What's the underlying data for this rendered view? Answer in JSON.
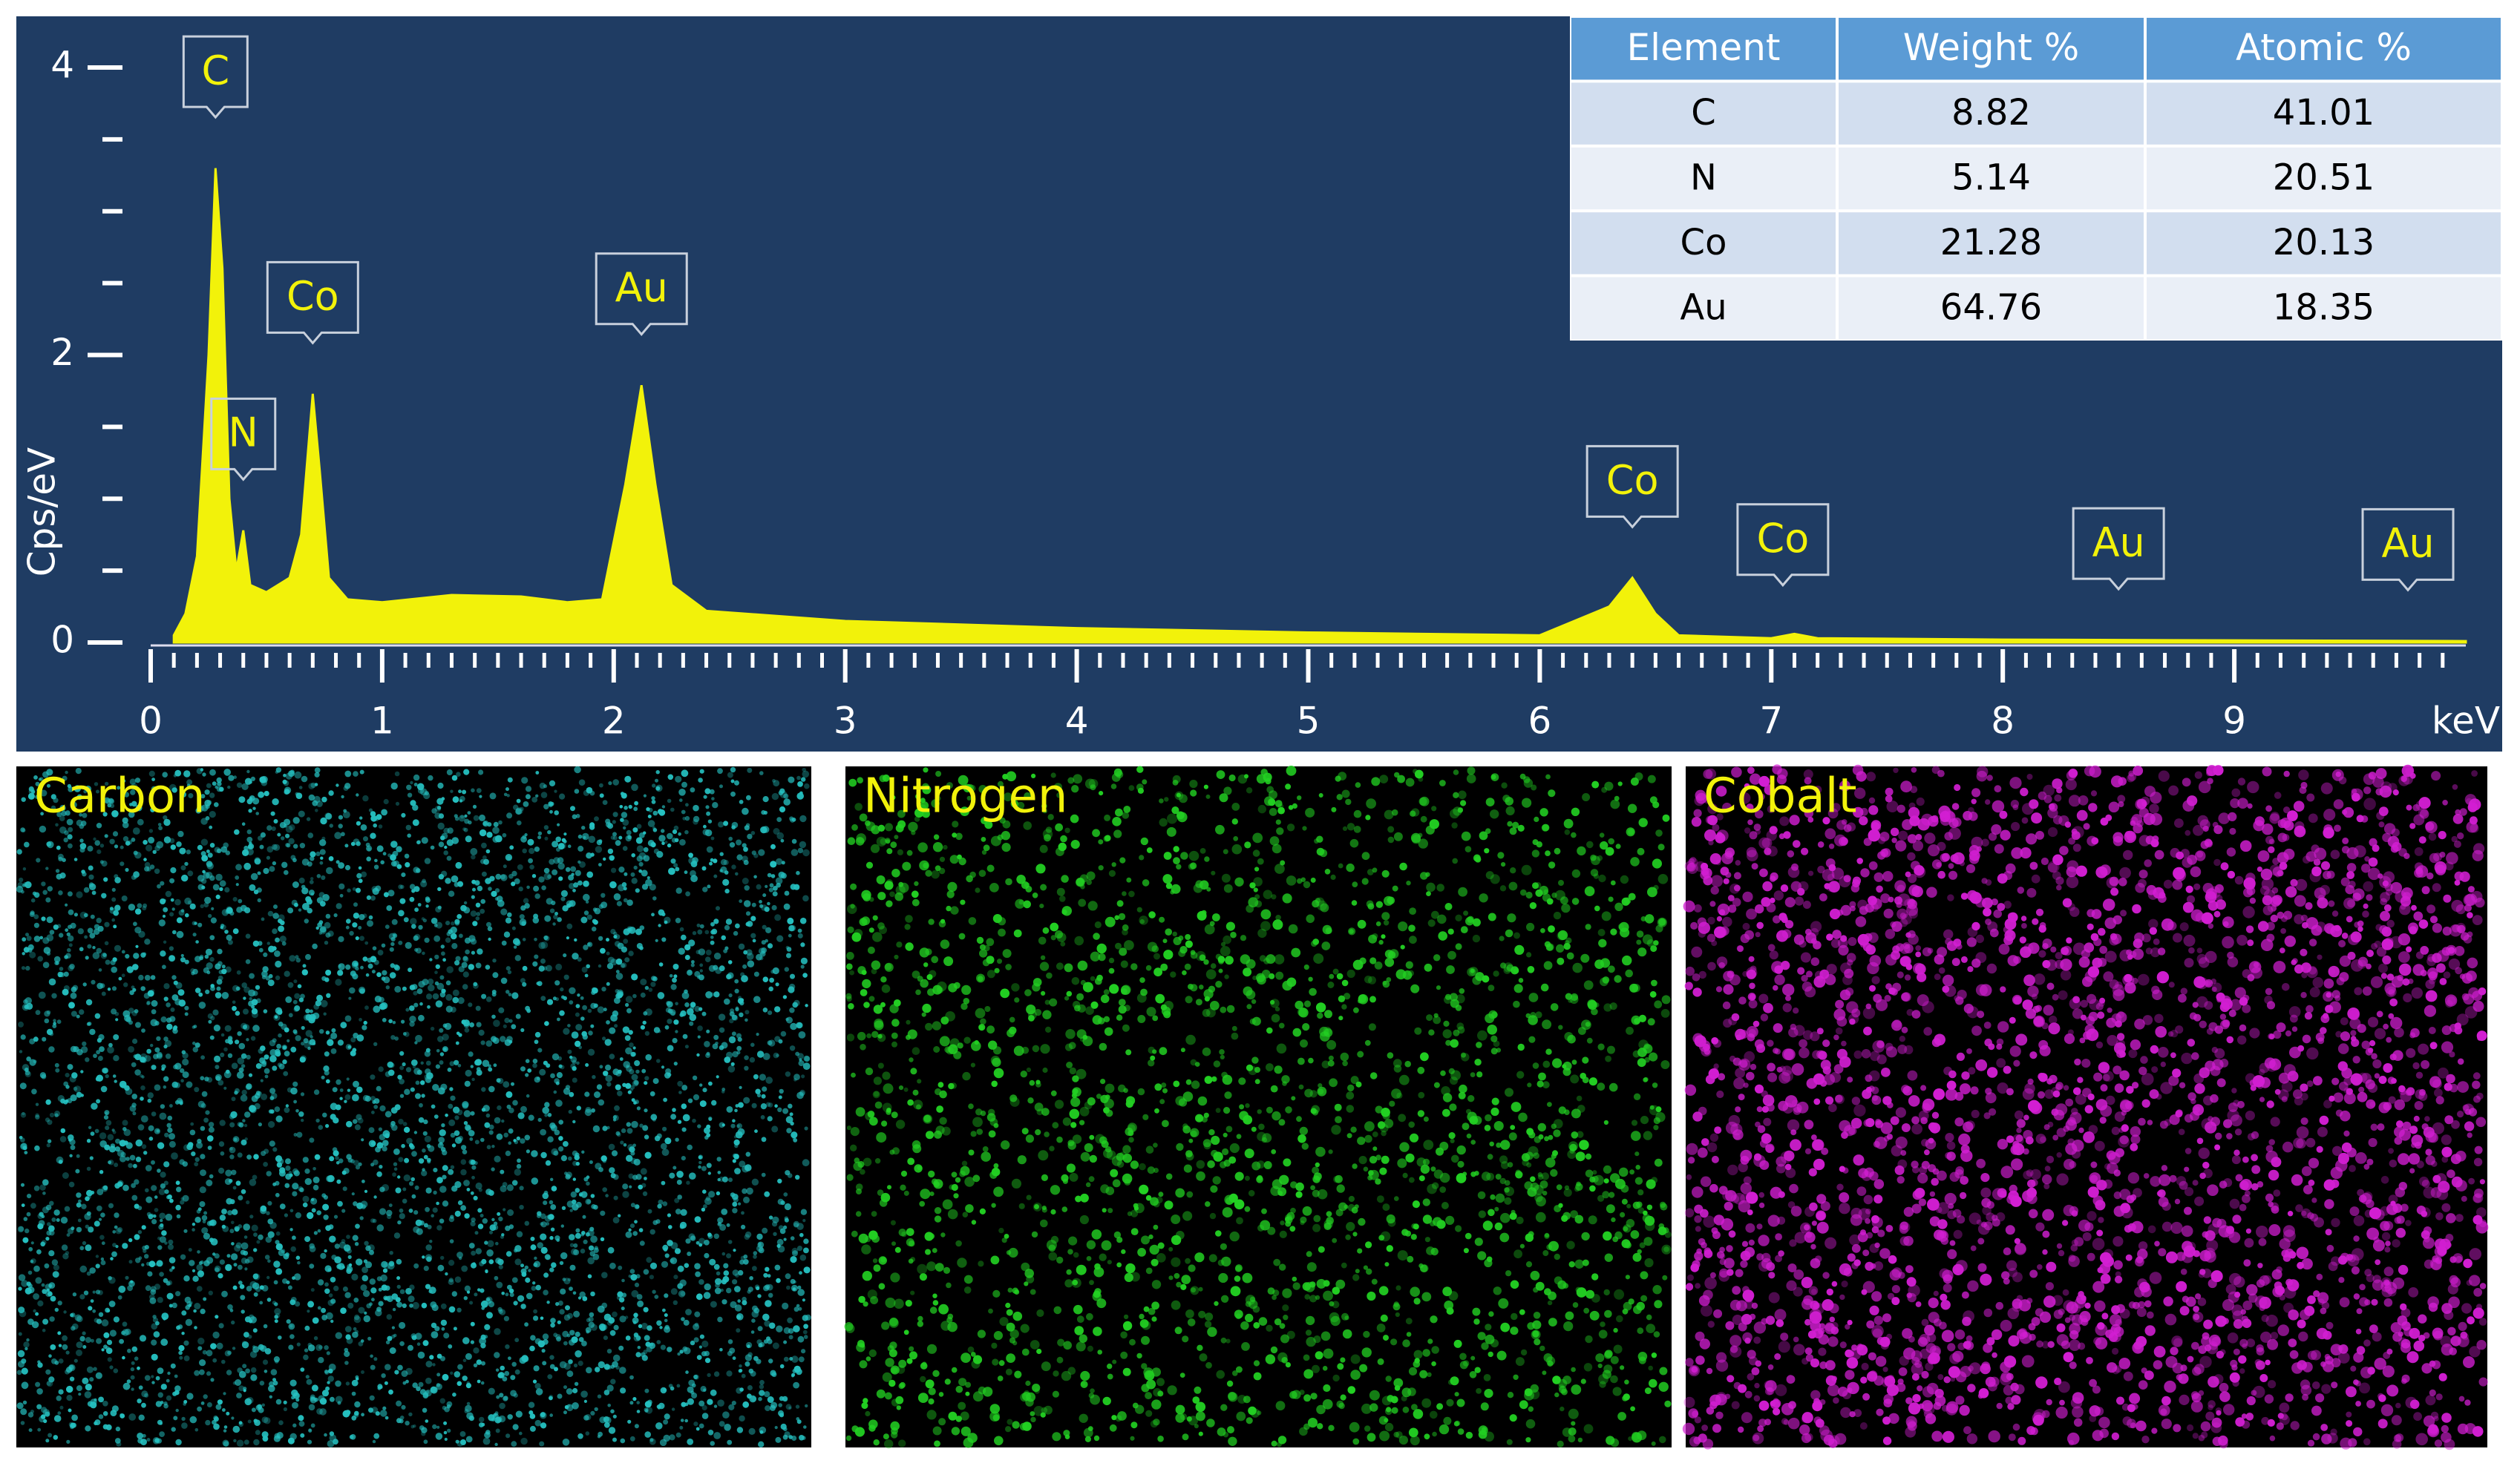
{
  "chart_data": {
    "type": "area",
    "y_label": "Cps/eV",
    "x_label": "keV",
    "color": "#f2f20a",
    "x": [
      0.1,
      0.15,
      0.2,
      0.25,
      0.28,
      0.31,
      0.34,
      0.37,
      0.4,
      0.43,
      0.5,
      0.6,
      0.65,
      0.7,
      0.73,
      0.77,
      0.85,
      1.0,
      1.3,
      1.6,
      1.8,
      1.95,
      2.05,
      2.12,
      2.18,
      2.25,
      2.4,
      3.0,
      4.0,
      5.0,
      6.0,
      6.3,
      6.4,
      6.5,
      6.6,
      7.0,
      7.1,
      7.2,
      8.0,
      9.0,
      10.0
    ],
    "values": [
      0.05,
      0.2,
      0.6,
      2.0,
      3.3,
      2.6,
      1.0,
      0.5,
      0.78,
      0.4,
      0.35,
      0.45,
      0.75,
      1.73,
      1.2,
      0.45,
      0.3,
      0.28,
      0.33,
      0.32,
      0.28,
      0.3,
      1.1,
      1.79,
      1.1,
      0.4,
      0.22,
      0.15,
      0.1,
      0.07,
      0.05,
      0.25,
      0.45,
      0.2,
      0.05,
      0.03,
      0.06,
      0.03,
      0.02,
      0.015,
      0.01
    ],
    "xlim": [
      0,
      10
    ],
    "xticks": [
      0,
      1,
      2,
      3,
      4,
      5,
      6,
      7,
      8,
      9
    ],
    "ylim": [
      0,
      4
    ],
    "yticks": [
      0,
      2,
      4
    ],
    "annotations": [
      {
        "label": "C",
        "x": 0.28
      },
      {
        "label": "N",
        "x": 0.4
      },
      {
        "label": "Co",
        "x": 0.7
      },
      {
        "label": "Au",
        "x": 2.12
      },
      {
        "label": "Co",
        "x": 6.4
      },
      {
        "label": "Co",
        "x": 7.05
      },
      {
        "label": "Au",
        "x": 8.5
      },
      {
        "label": "Au",
        "x": 9.75
      }
    ]
  },
  "table": {
    "header": [
      "Element",
      "Weight %",
      "Atomic %"
    ],
    "rows": [
      [
        "C",
        "8.82",
        "41.01"
      ],
      [
        "N",
        "5.14",
        "20.51"
      ],
      [
        "Co",
        "21.28",
        "20.13"
      ],
      [
        "Au",
        "64.76",
        "18.35"
      ]
    ]
  },
  "maps": [
    {
      "label": "Carbon",
      "color": "#25c0c0"
    },
    {
      "label": "Nitrogen",
      "color": "#22d022"
    },
    {
      "label": "Cobalt",
      "color": "#d21ed2"
    }
  ]
}
